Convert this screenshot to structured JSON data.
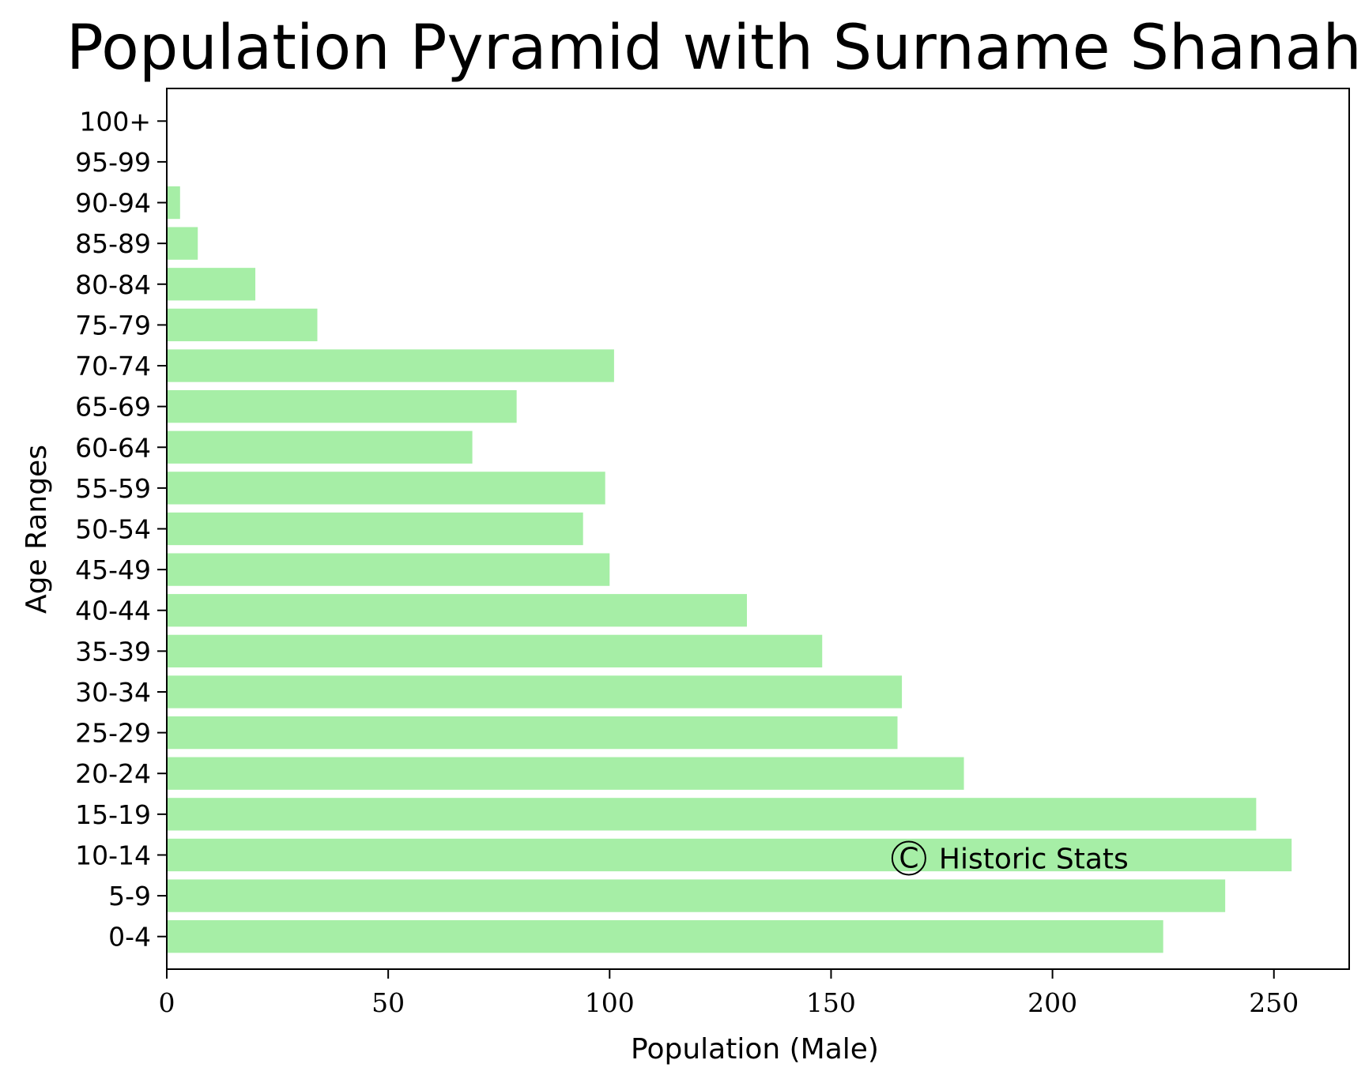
{
  "chart_data": {
    "type": "bar",
    "orientation": "horizontal",
    "title": "Population Pyramid with Surname Shanahan",
    "xlabel": "Population (Male)",
    "ylabel": "Age Ranges",
    "categories": [
      "0-4",
      "5-9",
      "10-14",
      "15-19",
      "20-24",
      "25-29",
      "30-34",
      "35-39",
      "40-44",
      "45-49",
      "50-54",
      "55-59",
      "60-64",
      "65-69",
      "70-74",
      "75-79",
      "80-84",
      "85-89",
      "90-94",
      "95-99",
      "100+"
    ],
    "values": [
      225,
      239,
      254,
      246,
      180,
      165,
      166,
      148,
      131,
      100,
      94,
      99,
      69,
      79,
      101,
      34,
      20,
      7,
      3,
      0,
      0
    ],
    "xlim": [
      0,
      267
    ],
    "xticks": [
      0,
      50,
      100,
      150,
      200,
      250
    ],
    "xtick_labels": [
      "0",
      "50",
      "100",
      "150",
      "200",
      "250"
    ],
    "bar_color": "#a6eea6",
    "grid": false,
    "legend": "none",
    "annotation": {
      "symbol": "C",
      "text": "Historic Stats",
      "x": 164,
      "category": "10-14"
    }
  }
}
